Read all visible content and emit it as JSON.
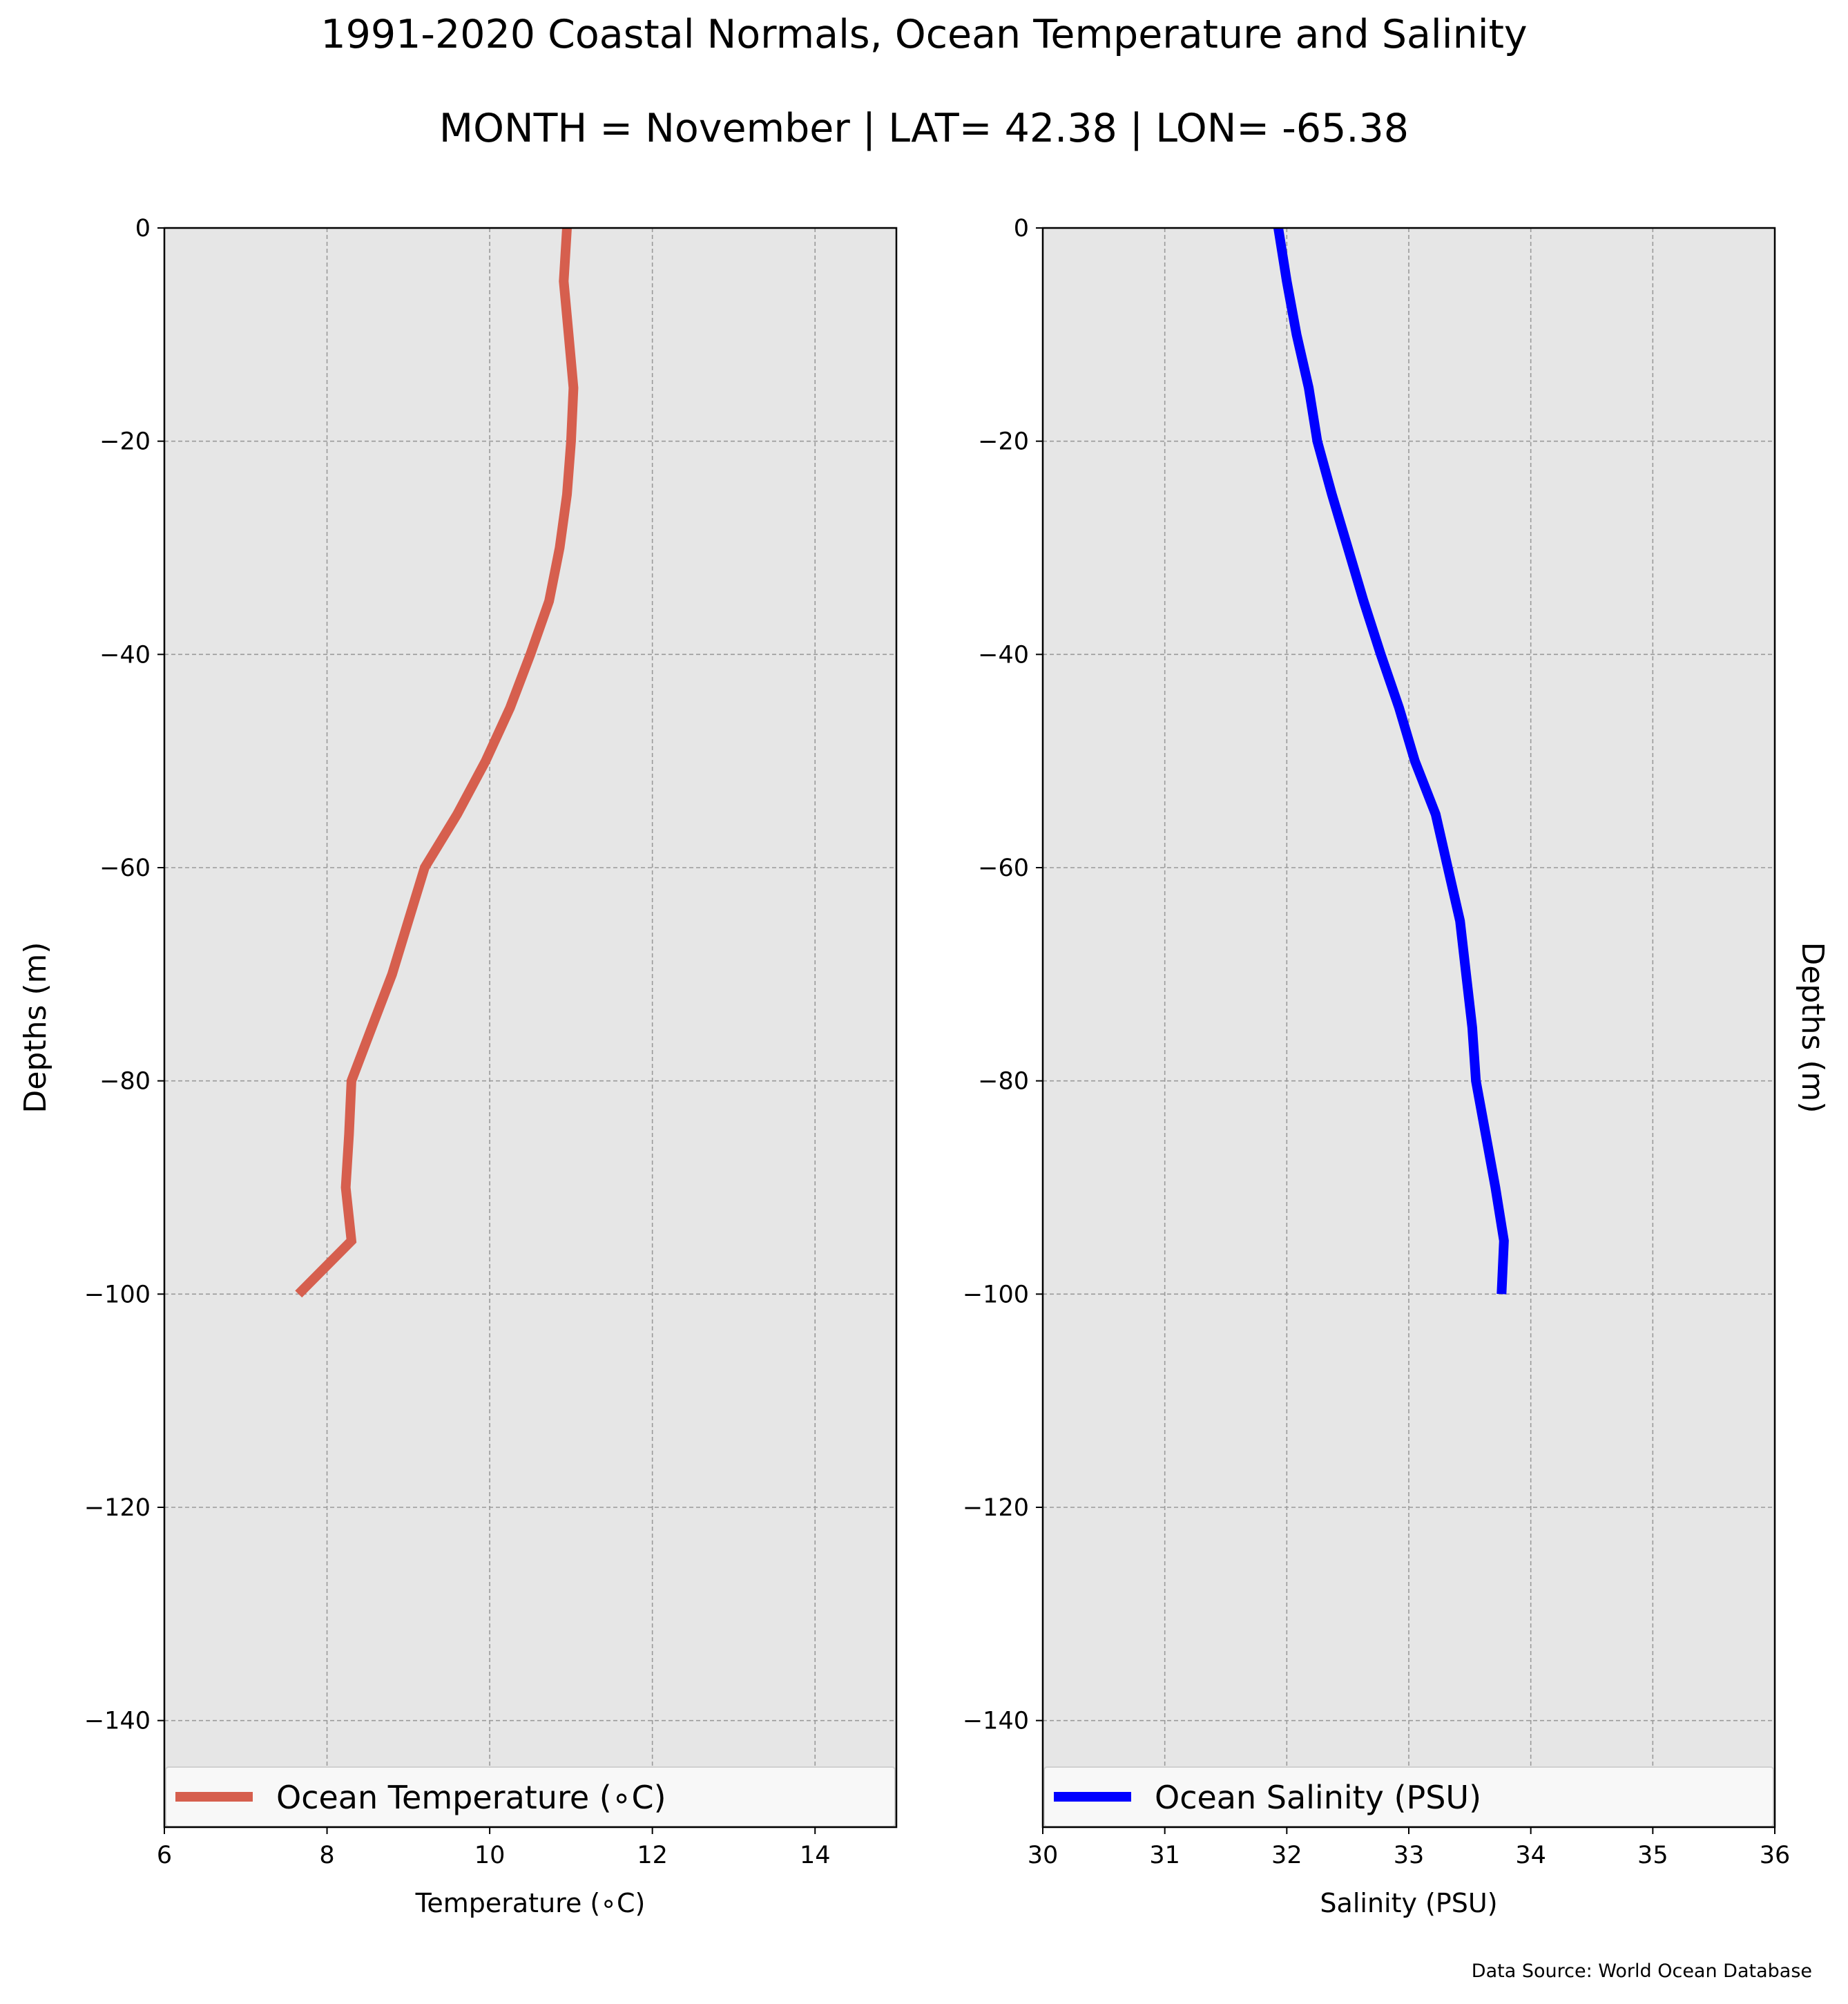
{
  "figure": {
    "title_line1": "1991-2020 Coastal Normals, Ocean Temperature and Salinity",
    "title_line2": "MONTH = November | LAT= 42.38 | LON= -65.38",
    "source_note": "Data Source: World Ocean Database",
    "background_color": "#e6e6e6"
  },
  "chart_data": [
    {
      "type": "line",
      "orientation": "profile (x = value, y = depth)",
      "series": [
        {
          "name": "Ocean Temperature ($^\\circ$C)",
          "legend_label": "Ocean Temperature (∘C)",
          "color": "#d65f4e",
          "x": [
            10.95,
            10.91,
            10.97,
            11.03,
            11.0,
            10.95,
            10.86,
            10.73,
            10.5,
            10.25,
            9.95,
            9.6,
            9.2,
            9.0,
            8.8,
            8.55,
            8.3,
            8.27,
            8.23,
            8.3,
            7.65
          ],
          "y": [
            0,
            -5,
            -10,
            -15,
            -20,
            -25,
            -30,
            -35,
            -40,
            -45,
            -50,
            -55,
            -60,
            -65,
            -70,
            -75,
            -80,
            -85,
            -90,
            -95,
            -100
          ]
        }
      ],
      "xlabel": "Temperature (∘C)",
      "ylabel": "Depths (m)",
      "xlim": [
        6,
        15
      ],
      "ylim": [
        -150,
        0
      ],
      "x_ticks": [
        6,
        8,
        10,
        12,
        14
      ],
      "x_tick_labels": [
        "6",
        "8",
        "10",
        "12",
        "14"
      ],
      "y_ticks": [
        0,
        -20,
        -40,
        -60,
        -80,
        -100,
        -120,
        -140
      ],
      "y_tick_labels": [
        "0",
        "−20",
        "−40",
        "−60",
        "−80",
        "−100",
        "−120",
        "−140"
      ],
      "grid": true,
      "legend_position": "bottom"
    },
    {
      "type": "line",
      "orientation": "profile (x = value, y = depth)",
      "series": [
        {
          "name": "Ocean Salinity (PSU)",
          "legend_label": "Ocean Salinity (PSU)",
          "color": "#0000ff",
          "x": [
            31.93,
            32.0,
            32.08,
            32.18,
            32.25,
            32.37,
            32.5,
            32.63,
            32.77,
            32.92,
            33.05,
            33.22,
            33.32,
            33.42,
            33.47,
            33.52,
            33.55,
            33.63,
            33.71,
            33.78,
            33.76
          ],
          "y": [
            0,
            -5,
            -10,
            -15,
            -20,
            -25,
            -30,
            -35,
            -40,
            -45,
            -50,
            -55,
            -60,
            -65,
            -70,
            -75,
            -80,
            -85,
            -90,
            -95,
            -100
          ]
        }
      ],
      "xlabel": "Salinity (PSU)",
      "ylabel": "Depths (m)",
      "xlim": [
        30,
        36
      ],
      "ylim": [
        -150,
        0
      ],
      "x_ticks": [
        30,
        31,
        32,
        33,
        34,
        35,
        36
      ],
      "x_tick_labels": [
        "30",
        "31",
        "32",
        "33",
        "34",
        "35",
        "36"
      ],
      "y_ticks": [
        0,
        -20,
        -40,
        -60,
        -80,
        -100,
        -120,
        -140
      ],
      "y_tick_labels": [
        "0",
        "−20",
        "−40",
        "−60",
        "−80",
        "−100",
        "−120",
        "−140"
      ],
      "grid": true,
      "legend_position": "bottom"
    }
  ]
}
